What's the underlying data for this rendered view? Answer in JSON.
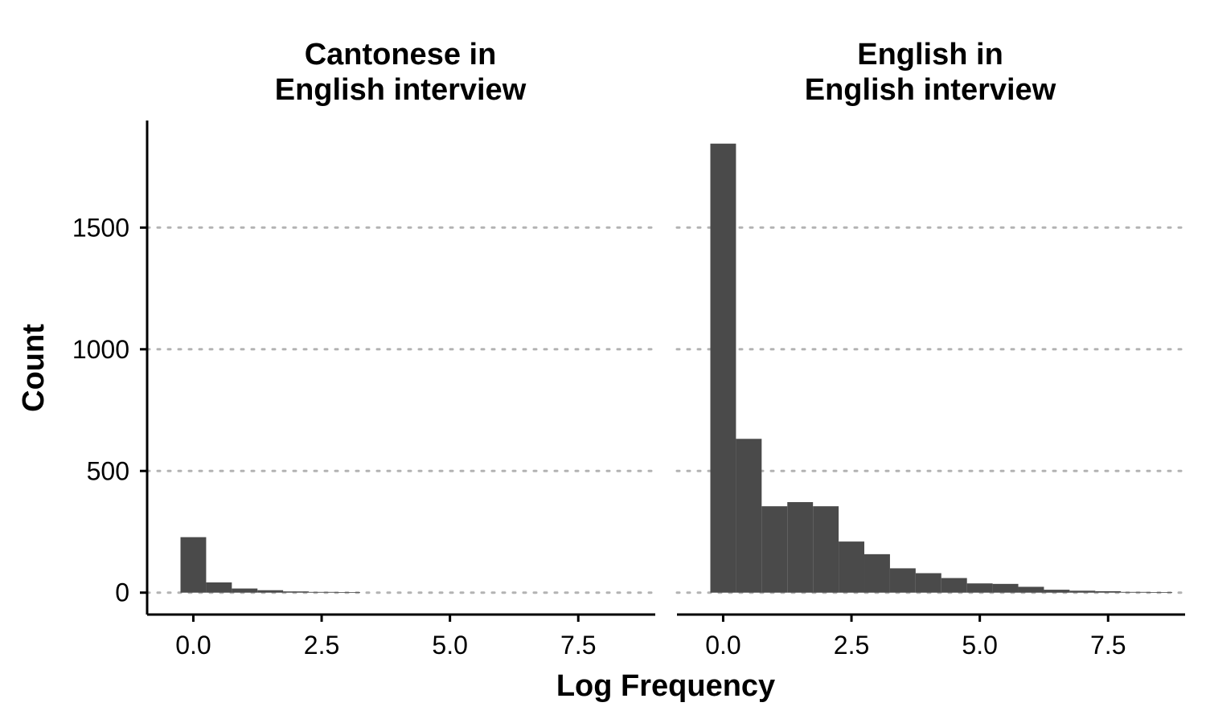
{
  "chart_data": {
    "type": "bar",
    "subtype": "histogram",
    "xlabel": "Log Frequency",
    "ylabel": "Count",
    "xlim": [
      -0.9,
      9.0
    ],
    "ylim": [
      -90,
      1940
    ],
    "x_ticks": [
      0.0,
      2.5,
      5.0,
      7.5
    ],
    "x_tick_labels": [
      "0.0",
      "2.5",
      "5.0",
      "7.5"
    ],
    "y_ticks": [
      0,
      500,
      1000,
      1500
    ],
    "y_tick_labels": [
      "0",
      "500",
      "1000",
      "1500"
    ],
    "grid": "horizontal-dotted",
    "bar_color": "#4a4a4a",
    "grid_color": "#b3b3b3",
    "bin_width": 0.5,
    "panels": [
      {
        "title_lines": [
          "Cantonese in",
          "English interview"
        ],
        "bins": [
          {
            "x0": -0.25,
            "x1": 0.25,
            "count": 228
          },
          {
            "x0": 0.25,
            "x1": 0.75,
            "count": 42
          },
          {
            "x0": 0.75,
            "x1": 1.25,
            "count": 17
          },
          {
            "x0": 1.25,
            "x1": 1.75,
            "count": 10
          },
          {
            "x0": 1.75,
            "x1": 2.25,
            "count": 5
          },
          {
            "x0": 2.25,
            "x1": 2.75,
            "count": 3
          },
          {
            "x0": 2.75,
            "x1": 3.25,
            "count": 2
          }
        ]
      },
      {
        "title_lines": [
          "English in",
          "English interview"
        ],
        "bins": [
          {
            "x0": -0.25,
            "x1": 0.25,
            "count": 1845
          },
          {
            "x0": 0.25,
            "x1": 0.75,
            "count": 632
          },
          {
            "x0": 0.75,
            "x1": 1.25,
            "count": 355
          },
          {
            "x0": 1.25,
            "x1": 1.75,
            "count": 372
          },
          {
            "x0": 1.75,
            "x1": 2.25,
            "count": 355
          },
          {
            "x0": 2.25,
            "x1": 2.75,
            "count": 210
          },
          {
            "x0": 2.75,
            "x1": 3.25,
            "count": 158
          },
          {
            "x0": 3.25,
            "x1": 3.75,
            "count": 100
          },
          {
            "x0": 3.75,
            "x1": 4.25,
            "count": 80
          },
          {
            "x0": 4.25,
            "x1": 4.75,
            "count": 60
          },
          {
            "x0": 4.75,
            "x1": 5.25,
            "count": 38
          },
          {
            "x0": 5.25,
            "x1": 5.75,
            "count": 36
          },
          {
            "x0": 5.75,
            "x1": 6.25,
            "count": 24
          },
          {
            "x0": 6.25,
            "x1": 6.75,
            "count": 12
          },
          {
            "x0": 6.75,
            "x1": 7.25,
            "count": 8
          },
          {
            "x0": 7.25,
            "x1": 7.75,
            "count": 6
          },
          {
            "x0": 7.75,
            "x1": 8.25,
            "count": 3
          },
          {
            "x0": 8.25,
            "x1": 8.75,
            "count": 2
          }
        ]
      }
    ]
  }
}
